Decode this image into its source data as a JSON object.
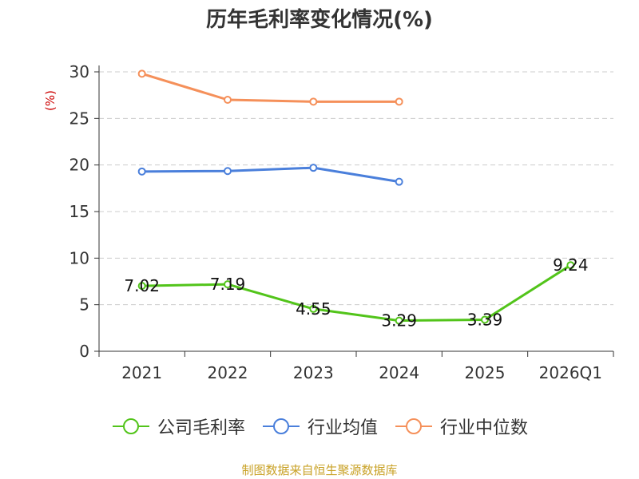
{
  "chart_data": {
    "type": "line",
    "title": "历年毛利率变化情况(%)",
    "ylabel": "(%)",
    "categories": [
      "2021",
      "2022",
      "2023",
      "2024",
      "2025",
      "2026Q1"
    ],
    "ylim": [
      0,
      30
    ],
    "yticks": [
      0,
      5,
      10,
      15,
      20,
      25,
      30
    ],
    "grid": true,
    "legend_position": "bottom",
    "series": [
      {
        "name": "公司毛利率",
        "color": "#52c41a",
        "show_labels": true,
        "values": [
          7.02,
          7.19,
          4.55,
          3.29,
          3.39,
          9.24
        ]
      },
      {
        "name": "行业均值",
        "color": "#4a7fdb",
        "show_labels": false,
        "values": [
          19.3,
          19.35,
          19.7,
          18.2,
          null,
          null
        ]
      },
      {
        "name": "行业中位数",
        "color": "#f5905a",
        "show_labels": false,
        "values": [
          29.8,
          27.0,
          26.8,
          26.8,
          null,
          null
        ]
      }
    ],
    "source": "制图数据来自恒生聚源数据库"
  }
}
